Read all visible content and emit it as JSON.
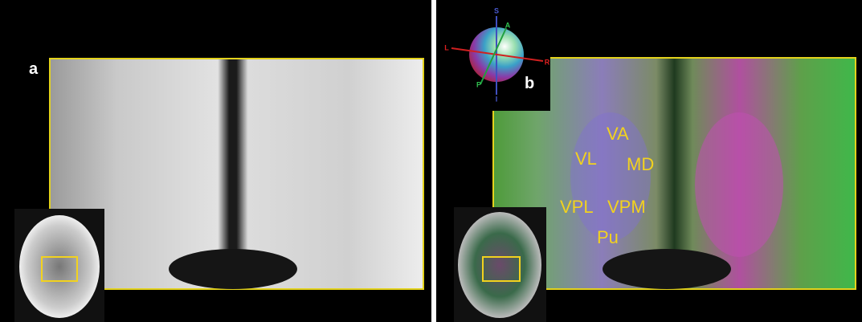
{
  "panels": [
    {
      "label": "a"
    },
    {
      "label": "b",
      "orientation": {
        "S": "S",
        "A": "A",
        "L": "L",
        "R": "R",
        "P": "P",
        "I": "I"
      },
      "structures": [
        "VA",
        "VL",
        "MD",
        "VPL",
        "VPM",
        "Pu"
      ]
    }
  ]
}
